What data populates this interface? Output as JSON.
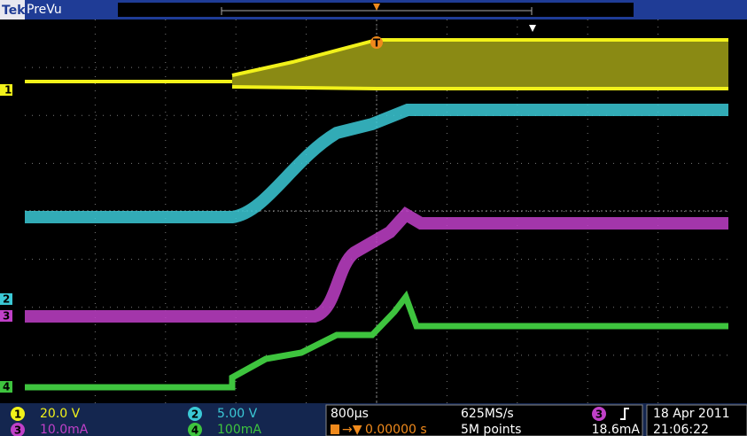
{
  "header": {
    "brand": "Tek",
    "mode": "PreVu"
  },
  "markers": {
    "trigger": "T",
    "ch1": "1",
    "ch2": "2",
    "ch3": "3",
    "ch4": "4"
  },
  "readouts": {
    "channels": [
      {
        "badge": "1",
        "scale": "20.0 V"
      },
      {
        "badge": "2",
        "scale": "5.00 V"
      },
      {
        "badge": "3",
        "scale": "10.0mA"
      },
      {
        "badge": "4",
        "scale": "100mA"
      }
    ],
    "timebase": "800µs",
    "trigger_position": "0.00000 s",
    "sample_rate": "625MS/s",
    "record_length": "5M points",
    "trigger_source": "3",
    "trigger_level": "18.6mA",
    "date": "18 Apr 2011",
    "time": "21:06:22"
  }
}
